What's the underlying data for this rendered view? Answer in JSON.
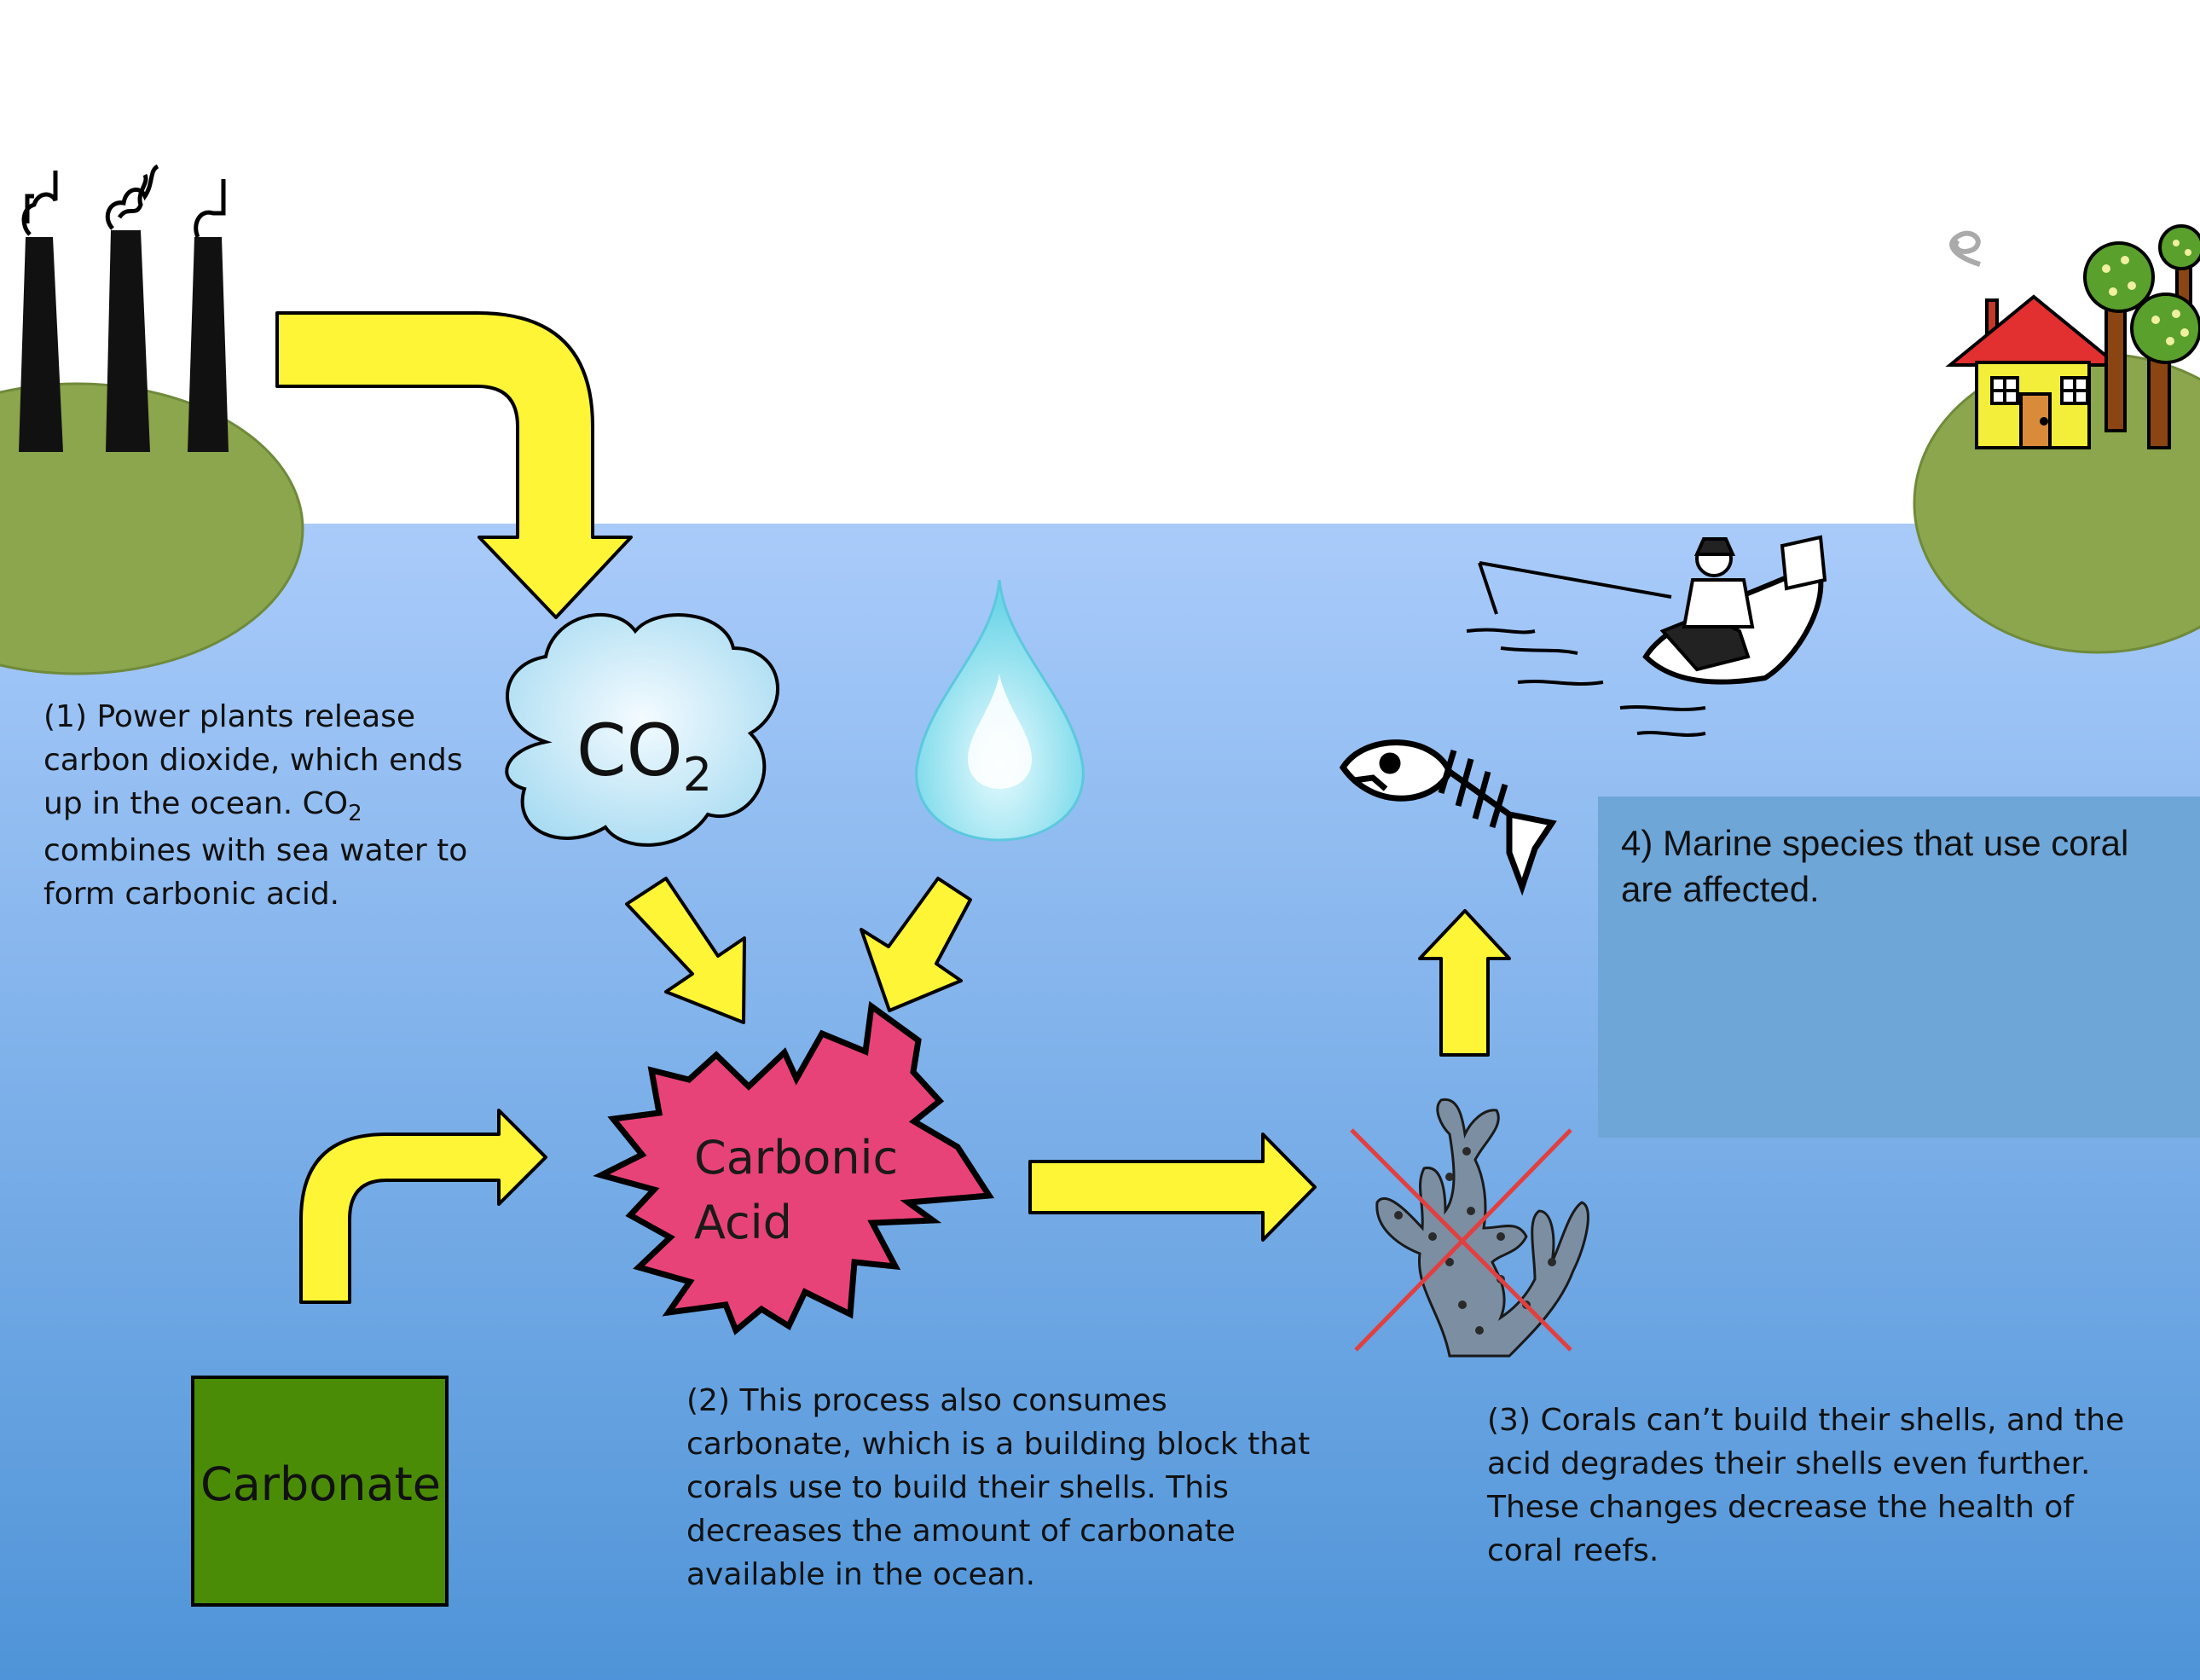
{
  "labels": {
    "co2_main": "CO",
    "co2_sub": "2",
    "carbonic_acid_line1": "Carbonic",
    "carbonic_acid_line2": "Acid",
    "carbonate": "Carbonate"
  },
  "captions": {
    "step1_pre": "(1) Power plants release carbon dioxide, which ends up in the ocean. CO",
    "step1_sub": "2",
    "step1_post": " combines with sea water to form carbonic acid.",
    "step2": "(2) This process also consumes carbonate, which is a building block that corals use to build their shells. This decreases the amount of carbonate available in the ocean.",
    "step3": "(3) Corals can’t build their shells, and the acid degrades their shells even further. These changes decrease the health of coral reefs.",
    "step4": "4) Marine species that use coral are affected."
  },
  "colors": {
    "ocean_top": "#a9cbfa",
    "ocean_bottom": "#4f94d8",
    "land": "#8ba64c",
    "arrow_fill": "#fdf535",
    "acid_fill": "#e84378",
    "carbonate_fill": "#4b8c07",
    "cloud_fill": "#b9e3f4",
    "drop_fill": "#7fdcea",
    "cross": "#e04040",
    "caption4_box": "#6fa6d8"
  },
  "icons": [
    "power-plant-icon",
    "house-icon",
    "tree-icon",
    "fisherman-boat-icon",
    "fish-skeleton-icon",
    "coral-icon",
    "water-drop-icon",
    "cloud-icon"
  ]
}
